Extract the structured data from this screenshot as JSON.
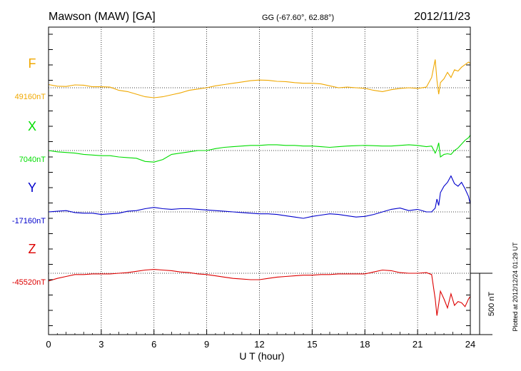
{
  "header": {
    "station": "Mawson (MAW)  [GA]",
    "coords": "GG (-67.60°,  62.88°)",
    "date": "2012/11/23"
  },
  "side_note": "Plotted at 2012/12/24 01:29 UT",
  "scale_label": "500 nT",
  "colors": {
    "F": "#f0a800",
    "X": "#00dd00",
    "Y": "#0000cc",
    "Z": "#dd0000",
    "axis": "#000000"
  },
  "chart_data": {
    "type": "line",
    "xlabel": "U T (hour)",
    "xlim": [
      0,
      24
    ],
    "x_ticks": [
      0,
      3,
      6,
      9,
      12,
      15,
      18,
      21,
      24
    ],
    "scale_bar_nT": 500,
    "x": [
      0,
      0.5,
      1,
      1.5,
      2,
      2.5,
      3,
      3.5,
      4,
      4.5,
      5,
      5.5,
      6,
      6.5,
      7,
      7.5,
      8,
      8.5,
      9,
      9.5,
      10,
      10.5,
      11,
      11.5,
      12,
      12.5,
      13,
      13.5,
      14,
      14.5,
      15,
      15.5,
      16,
      16.5,
      17,
      17.5,
      18,
      18.5,
      19,
      19.5,
      20,
      20.5,
      21,
      21.5,
      21.8,
      22,
      22.1,
      22.2,
      22.3,
      22.5,
      22.7,
      22.9,
      23.1,
      23.3,
      23.5,
      23.7,
      23.9,
      24
    ],
    "series": [
      {
        "name": "F",
        "baseline_label": "49160nT",
        "color": "#f0a800",
        "values": [
          25,
          12,
          10,
          22,
          20,
          8,
          8,
          5,
          -20,
          -30,
          -50,
          -70,
          -78,
          -70,
          -55,
          -40,
          -20,
          -10,
          0,
          15,
          25,
          35,
          45,
          55,
          60,
          58,
          50,
          48,
          40,
          35,
          35,
          30,
          15,
          0,
          5,
          0,
          -5,
          -20,
          -30,
          -15,
          -5,
          0,
          -5,
          5,
          80,
          220,
          60,
          -50,
          40,
          70,
          120,
          80,
          140,
          130,
          160,
          180,
          200,
          190
        ]
      },
      {
        "name": "X",
        "baseline_label": "7040nT",
        "color": "#00dd00",
        "values": [
          0,
          -10,
          -15,
          -20,
          -30,
          -35,
          -40,
          -40,
          -50,
          -55,
          -60,
          -85,
          -90,
          -70,
          -30,
          -20,
          -10,
          0,
          0,
          15,
          25,
          30,
          35,
          40,
          40,
          45,
          45,
          40,
          40,
          35,
          35,
          30,
          25,
          30,
          35,
          38,
          40,
          38,
          35,
          35,
          40,
          45,
          40,
          30,
          35,
          -20,
          10,
          60,
          -50,
          -30,
          -25,
          -30,
          0,
          20,
          50,
          80,
          100,
          120
        ]
      },
      {
        "name": "Y",
        "baseline_label": "-17160nT",
        "color": "#0000cc",
        "values": [
          0,
          5,
          10,
          -5,
          -10,
          -10,
          -20,
          -15,
          -10,
          5,
          10,
          25,
          35,
          25,
          20,
          25,
          25,
          20,
          15,
          10,
          5,
          0,
          -5,
          -10,
          -15,
          -15,
          -20,
          -30,
          -40,
          -50,
          -35,
          -25,
          -15,
          -20,
          -30,
          -40,
          -35,
          -20,
          0,
          20,
          30,
          10,
          20,
          0,
          0,
          30,
          100,
          50,
          150,
          200,
          230,
          280,
          220,
          200,
          230,
          180,
          120,
          60
        ]
      },
      {
        "name": "Z",
        "baseline_label": "-45520nT",
        "color": "#dd0000",
        "values": [
          -60,
          -40,
          -25,
          -10,
          -10,
          -5,
          -5,
          -5,
          0,
          5,
          15,
          25,
          30,
          25,
          20,
          10,
          5,
          -5,
          -10,
          -20,
          -30,
          -40,
          -45,
          -50,
          -50,
          -40,
          -30,
          -25,
          -20,
          -15,
          -15,
          -10,
          -10,
          -5,
          -5,
          -5,
          -5,
          10,
          25,
          20,
          5,
          0,
          0,
          5,
          -10,
          -200,
          -330,
          -240,
          -140,
          -200,
          -270,
          -160,
          -250,
          -220,
          -230,
          -260,
          -200,
          -180
        ]
      }
    ]
  }
}
